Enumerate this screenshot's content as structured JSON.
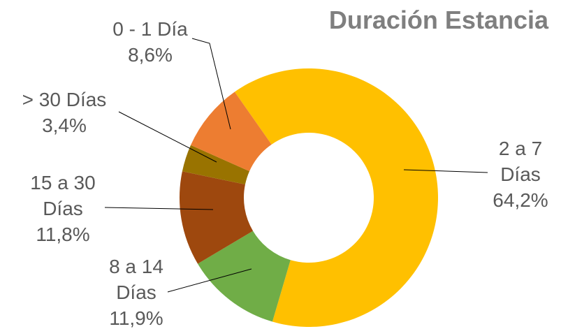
{
  "chart_data": {
    "type": "donut",
    "title": "Duración Estancia",
    "categories": [
      "2 a 7 Días",
      "8 a 14 Días",
      "15 a 30 Días",
      "> 30 Días",
      "0 - 1 Día"
    ],
    "values": [
      64.2,
      11.9,
      11.8,
      3.4,
      8.6
    ],
    "value_labels": [
      "64,2%",
      "11,9%",
      "11,8%",
      "3,4%",
      "8,6%"
    ],
    "colors": [
      "#ffc000",
      "#70ad47",
      "#9e480e",
      "#997300",
      "#ed7d31"
    ]
  }
}
